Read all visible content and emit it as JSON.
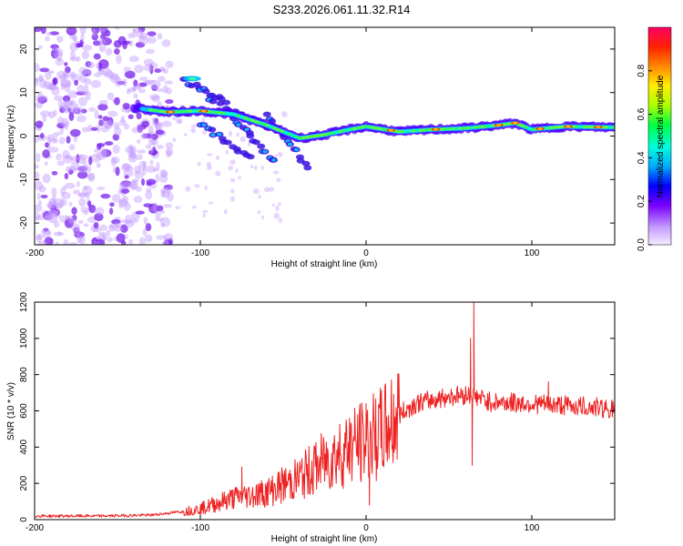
{
  "title": "S233.2026.061.11.32.R14",
  "chart_data": [
    {
      "type": "heatmap",
      "name": "spectrogram",
      "xlabel": "Height of straight line (km)",
      "ylabel": "Frequency (Hz)",
      "xlim": [
        -200,
        150
      ],
      "ylim": [
        -25,
        25
      ],
      "xticks": [
        -200,
        -100,
        0,
        100
      ],
      "yticks": [
        -20,
        -10,
        0,
        10,
        20
      ],
      "colorbar": {
        "label": "Normalized spectral amplitude",
        "range": [
          0,
          1
        ],
        "ticks": [
          0.0,
          0.2,
          0.4,
          0.6,
          0.8
        ]
      },
      "main_line": [
        {
          "x": -140,
          "y": 6.5
        },
        {
          "x": -120,
          "y": 5.5
        },
        {
          "x": -100,
          "y": 5.8
        },
        {
          "x": -80,
          "y": 5.0
        },
        {
          "x": -60,
          "y": 2.5
        },
        {
          "x": -40,
          "y": -0.5
        },
        {
          "x": -25,
          "y": 0.3
        },
        {
          "x": -10,
          "y": 1.5
        },
        {
          "x": 0,
          "y": 2.2
        },
        {
          "x": 20,
          "y": 1.0
        },
        {
          "x": 40,
          "y": 1.5
        },
        {
          "x": 60,
          "y": 1.8
        },
        {
          "x": 80,
          "y": 2.5
        },
        {
          "x": 90,
          "y": 3.0
        },
        {
          "x": 100,
          "y": 1.5
        },
        {
          "x": 120,
          "y": 2.2
        },
        {
          "x": 150,
          "y": 2.0
        }
      ],
      "branches": [
        {
          "x0": -110,
          "y0": 13,
          "x1": -85,
          "y1": 8
        },
        {
          "x0": -95,
          "y0": 8,
          "x1": -50,
          "y1": 1
        },
        {
          "x0": -100,
          "y0": 3,
          "x1": -70,
          "y1": -5
        },
        {
          "x0": -80,
          "y0": 4,
          "x1": -55,
          "y1": -6
        },
        {
          "x0": -60,
          "y0": 5,
          "x1": -35,
          "y1": -7
        }
      ]
    },
    {
      "type": "line",
      "name": "snr",
      "xlabel": "Height of straight line (km)",
      "ylabel": "SNR (10 * v/v)",
      "xlim": [
        -200,
        150
      ],
      "ylim": [
        0,
        1200
      ],
      "xticks": [
        -200,
        -100,
        0,
        100
      ],
      "yticks": [
        0,
        200,
        400,
        600,
        800,
        1000,
        1200
      ],
      "color": "#ee2222",
      "envelope": [
        {
          "x": -200,
          "y": 20
        },
        {
          "x": -160,
          "y": 20
        },
        {
          "x": -130,
          "y": 25
        },
        {
          "x": -110,
          "y": 45
        },
        {
          "x": -100,
          "y": 60
        },
        {
          "x": -80,
          "y": 120
        },
        {
          "x": -60,
          "y": 150
        },
        {
          "x": -40,
          "y": 230
        },
        {
          "x": -25,
          "y": 320
        },
        {
          "x": -10,
          "y": 400
        },
        {
          "x": 0,
          "y": 430
        },
        {
          "x": 10,
          "y": 480
        },
        {
          "x": 20,
          "y": 580
        },
        {
          "x": 30,
          "y": 640
        },
        {
          "x": 50,
          "y": 680
        },
        {
          "x": 62,
          "y": 690
        },
        {
          "x": 75,
          "y": 650
        },
        {
          "x": 100,
          "y": 640
        },
        {
          "x": 130,
          "y": 625
        },
        {
          "x": 150,
          "y": 610
        }
      ],
      "spikes": [
        {
          "x": -75,
          "y": 290
        },
        {
          "x": -50,
          "y": 250
        },
        {
          "x": -30,
          "y": 330
        },
        {
          "x": -20,
          "y": 420
        },
        {
          "x": -10,
          "y": 560
        },
        {
          "x": 0,
          "y": 640
        },
        {
          "x": 2,
          "y": 80
        },
        {
          "x": 63,
          "y": 1000
        },
        {
          "x": 65,
          "y": 1200
        },
        {
          "x": 64,
          "y": 300
        },
        {
          "x": 110,
          "y": 760
        }
      ]
    }
  ]
}
